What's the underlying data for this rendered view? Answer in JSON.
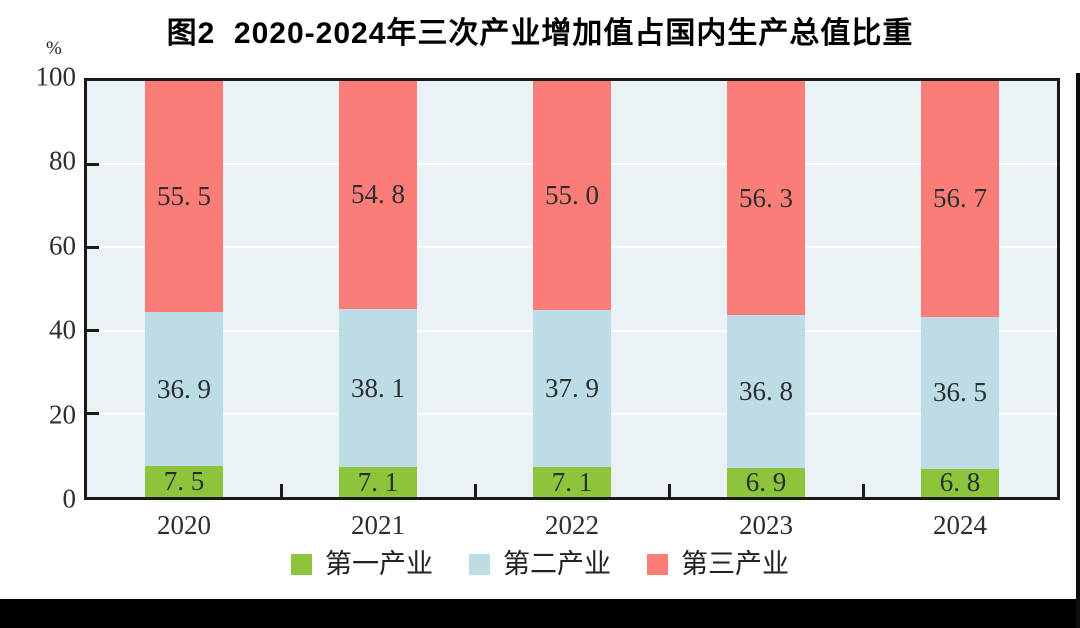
{
  "title": "图2  2020-2024年三次产业增加值占国内生产总值比重",
  "y_axis": {
    "unit": "%",
    "ticks": [
      "0",
      "20",
      "40",
      "60",
      "80",
      "100"
    ],
    "tick_values": [
      0,
      20,
      40,
      60,
      80,
      100
    ],
    "grid_values": [
      20,
      40,
      60,
      80
    ]
  },
  "chart_data": {
    "type": "bar",
    "stacked": true,
    "title": "图2  2020-2024年三次产业增加值占国内生产总值比重",
    "xlabel": "",
    "ylabel": "%",
    "ylim": [
      0,
      100
    ],
    "grid": true,
    "legend_position": "bottom",
    "categories": [
      "2020",
      "2021",
      "2022",
      "2023",
      "2024"
    ],
    "series": [
      {
        "name": "第一产业",
        "color": "#8cc43c",
        "values": [
          7.5,
          7.1,
          7.1,
          6.9,
          6.8
        ],
        "value_labels": [
          "7. 5",
          "7. 1",
          "7. 1",
          "6. 9",
          "6. 8"
        ]
      },
      {
        "name": "第二产业",
        "color": "#bcdce6",
        "values": [
          36.9,
          38.1,
          37.9,
          36.8,
          36.5
        ],
        "value_labels": [
          "36. 9",
          "38. 1",
          "37. 9",
          "36. 8",
          "36. 5"
        ]
      },
      {
        "name": "第三产业",
        "color": "#fa7d78",
        "values": [
          55.5,
          54.8,
          55.0,
          56.3,
          56.7
        ],
        "value_labels": [
          "55. 5",
          "54. 8",
          "55. 0",
          "56. 3",
          "56. 7"
        ]
      }
    ],
    "colors": {
      "plot_background": "#eaf2f6",
      "gridline": "#ffffff",
      "frame": "#1a1a1a",
      "label_text": "#2d2d2d"
    }
  }
}
